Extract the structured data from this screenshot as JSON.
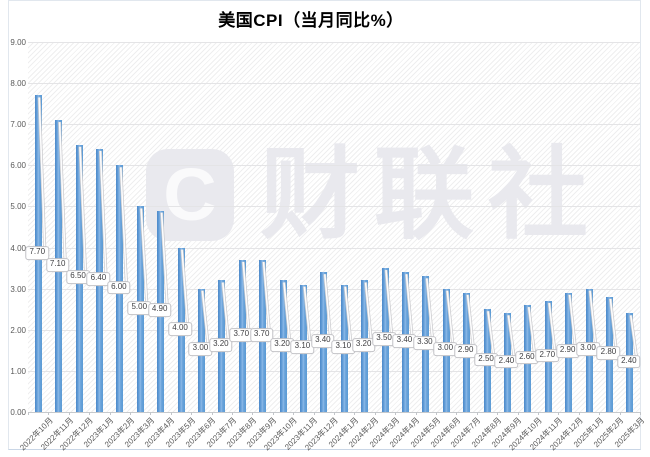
{
  "chart_data": {
    "type": "bar",
    "title": "美国CPI（当月同比%）",
    "categories": [
      "2022年10月",
      "2022年11月",
      "2022年12月",
      "2023年1月",
      "2023年2月",
      "2023年3月",
      "2023年4月",
      "2023年5月",
      "2023年6月",
      "2023年7月",
      "2023年8月",
      "2023年9月",
      "2023年10月",
      "2023年11月",
      "2023年12月",
      "2024年1月",
      "2024年2月",
      "2024年3月",
      "2024年4月",
      "2024年5月",
      "2024年6月",
      "2024年7月",
      "2024年8月",
      "2024年9月",
      "2024年10月",
      "2024年11月",
      "2024年12月",
      "2025年1月",
      "2025年2月",
      "2025年3月"
    ],
    "values": [
      7.7,
      7.1,
      6.5,
      6.4,
      6.0,
      5.0,
      4.9,
      4.0,
      3.0,
      3.2,
      3.7,
      3.7,
      3.2,
      3.1,
      3.4,
      3.1,
      3.2,
      3.5,
      3.4,
      3.3,
      3.0,
      2.9,
      2.5,
      2.4,
      2.6,
      2.7,
      2.9,
      3.0,
      2.8,
      2.4
    ],
    "data_labels": [
      "7.70",
      "7.10",
      "6.50",
      "6.40",
      "6.00",
      "5.00",
      "4.90",
      "4.00",
      "3.00",
      "3.20",
      "3.70",
      "3.70",
      "3.20",
      "3.10",
      "3.40",
      "3.10",
      "3.20",
      "3.50",
      "3.40",
      "3.30",
      "3.00",
      "2.90",
      "2.50",
      "2.40",
      "2.60",
      "2.70",
      "2.90",
      "3.00",
      "2.80",
      "2.40"
    ],
    "xlabel": "",
    "ylabel": "",
    "ylim": [
      0,
      9
    ],
    "ytick_labels": [
      "9.00",
      "8.00",
      "7.00",
      "6.00",
      "5.00",
      "4.00",
      "3.00",
      "2.00",
      "1.00",
      "0.00"
    ],
    "grid": "horizontal",
    "legend": "none",
    "bar_color": "#5b9bd5",
    "plot_background": "diagonal-hatch",
    "axis_label_color": "#595959",
    "gridline_color": "#e4e4e6"
  },
  "watermark": {
    "logo_letter": "C",
    "brand_text": "财联社",
    "color": "#e9e9ee"
  }
}
